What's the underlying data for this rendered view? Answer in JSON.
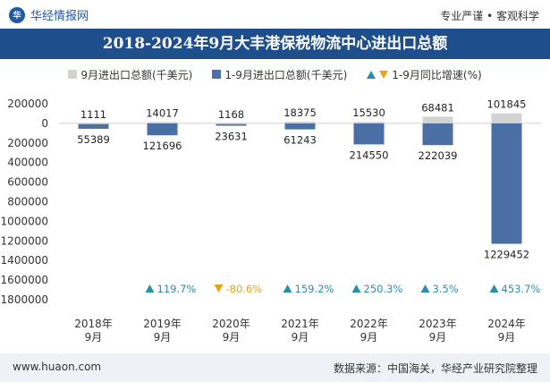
{
  "header": {
    "brand": "华经情报网",
    "tags": "专业严谨 • 客观科学"
  },
  "footer": {
    "site": "www.huaon.com",
    "source": "数据来源：中国海关，华经产业研究院整理"
  },
  "colors": {
    "title_bg": "#1f4e8c",
    "bar_sept": "#d3d3d3",
    "bar_cumulative": "#4a6fa5",
    "growth_up": "#2a8fa8",
    "growth_down": "#e8a317"
  },
  "chart_data": {
    "type": "bar",
    "title": "2018-2024年9月大丰港保税物流中心进出口总额",
    "categories": [
      "2018年\n9月",
      "2019年\n9月",
      "2020年\n9月",
      "2021年\n9月",
      "2022年\n9月",
      "2023年\n9月",
      "2024年\n9月"
    ],
    "series": [
      {
        "name": "9月进出口总额(千美元)",
        "values": [
          1111,
          14017,
          1168,
          18375,
          15530,
          68481,
          101845
        ]
      },
      {
        "name": "1-9月进出口总额(千美元)",
        "values": [
          -55389,
          -121696,
          -23631,
          -61243,
          -214550,
          -222039,
          -1229452
        ]
      }
    ],
    "value_labels": {
      "sept": [
        "1111",
        "14017",
        "1168",
        "18375",
        "15530",
        "68481",
        "101845"
      ],
      "cumulative": [
        "55389",
        "121696",
        "23631",
        "61243",
        "214550",
        "222039",
        "1229452"
      ]
    },
    "growth": {
      "name": "1-9月同比增速(%)",
      "values": [
        119.7,
        -80.6,
        159.2,
        250.3,
        3.5,
        453.7
      ],
      "labels": [
        "119.7%",
        "-80.6%",
        "159.2%",
        "250.3%",
        "3.5%",
        "453.7%"
      ],
      "start_index": 1
    },
    "y_ticks": [
      200000,
      0,
      -200000,
      -400000,
      -600000,
      -800000,
      -1000000,
      -1200000,
      -1400000,
      -1600000,
      -1800000
    ],
    "y_tick_labels": [
      "200000",
      "0",
      "200000",
      "400000",
      "600000",
      "800000",
      "1000000",
      "1200000",
      "1400000",
      "1600000",
      "1800000"
    ],
    "ylim": [
      -1800000,
      200000
    ],
    "grid": false,
    "legend_position": "top-center"
  }
}
